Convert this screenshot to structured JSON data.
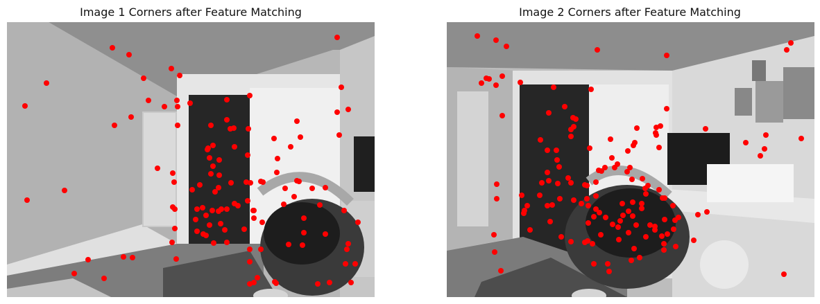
{
  "panels": [
    {
      "title": "Image 1 Corners after Feature Matching"
    },
    {
      "title": "Image 2 Corners after Feature Matching"
    }
  ],
  "colors": {
    "marker": "#ff0000",
    "wall": "#b9b9b9",
    "ceiling": "#8e8e8e",
    "door": "#d9d9d9",
    "floor": "#8a8a8a",
    "dark": "#232323",
    "frame_white": "#e8e8e8"
  }
}
